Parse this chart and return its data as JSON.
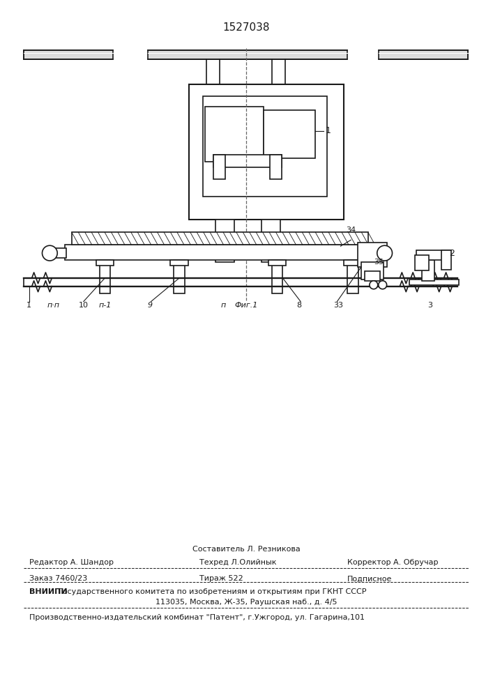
{
  "patent_number": "1527038",
  "background_color": "#ffffff",
  "line_color": "#1a1a1a",
  "footer": {
    "sestavitel": "Составитель Л. Резникова",
    "redaktor": "Редактор А. Шандор",
    "tehred": "Техред Л.Олийнык",
    "korrektor": "Корректор А. Обручар",
    "zakaz": "Заказ 7460/23",
    "tirazh": "Тираж 522",
    "podpisnoe": "Подписное",
    "vniipи": "ВНИИПИ",
    "vniipи_text": "Государственного комитета по изобретениям и открытиям при ГКНТ СССР",
    "address": "113035, Москва, Ж-35, Раушская наб., д. 4/5",
    "proizv": "Производственно-издательский комбинат \"Патент\", г.Ужгород, ул. Гагарина,101"
  }
}
